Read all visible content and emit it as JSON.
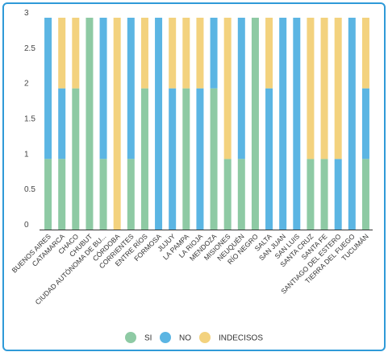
{
  "chart_data": {
    "type": "bar",
    "stacked": true,
    "categories": [
      "BUENOS AIRES",
      "CATAMARCA",
      "CHACO",
      "CHUBUT",
      "CIUDAD AUTÓNOMA DE BU...",
      "CÓRDOBA",
      "CORRIENTES",
      "ENTRE RÍOS",
      "FORMOSA",
      "JUJUY",
      "LA PAMPA",
      "LA RIOJA",
      "MENDOZA",
      "MISIONES",
      "NEUQUÉN",
      "RÍO NEGRO",
      "SALTA",
      "SAN JUAN",
      "SAN LUIS",
      "SANTA CRUZ",
      "SANTA FE",
      "SANTIAGO DEL ESTERO",
      "TIERRA DEL FUEGO",
      "TUCUMÁN"
    ],
    "series": [
      {
        "name": "SI",
        "color": "#8ecaa4",
        "values": [
          1,
          1,
          2,
          3,
          1,
          0,
          1,
          2,
          0,
          0,
          2,
          0,
          2,
          1,
          1,
          3,
          0,
          0,
          0,
          1,
          1,
          0,
          0,
          1
        ]
      },
      {
        "name": "NO",
        "color": "#5bb5e3",
        "values": [
          2,
          1,
          0,
          0,
          2,
          0,
          2,
          0,
          3,
          2,
          0,
          2,
          1,
          0,
          2,
          0,
          2,
          3,
          3,
          0,
          0,
          1,
          3,
          1
        ]
      },
      {
        "name": "INDECISOS",
        "color": "#f3d27e",
        "values": [
          0,
          1,
          1,
          0,
          0,
          3,
          0,
          1,
          0,
          1,
          1,
          1,
          0,
          2,
          0,
          0,
          1,
          0,
          0,
          2,
          2,
          2,
          0,
          1
        ]
      }
    ],
    "ylim": [
      0,
      3
    ],
    "yticks": [
      "0",
      "0.5",
      "1",
      "1.5",
      "2",
      "2.5",
      "3"
    ],
    "ytick_values": [
      0,
      0.5,
      1,
      1.5,
      2,
      2.5,
      3
    ],
    "grid": false,
    "legend_position": "bottom-center"
  }
}
